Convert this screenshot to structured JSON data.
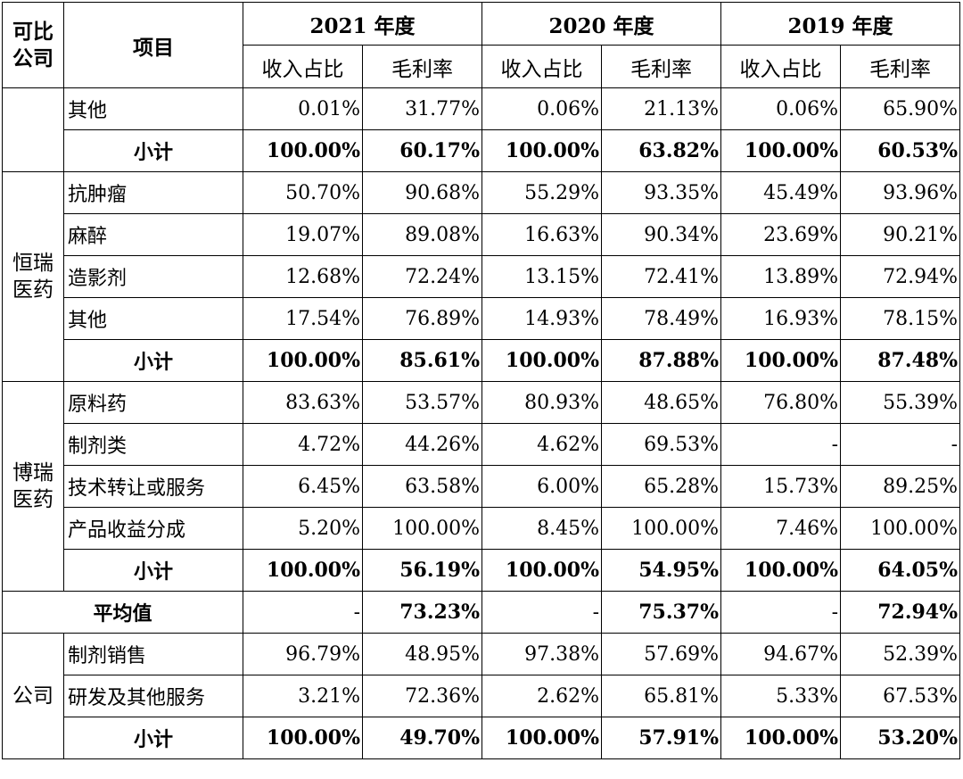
{
  "header": {
    "company_col": "可比公司",
    "item_col": "项目",
    "years": [
      "2021 年度",
      "2020 年度",
      "2019 年度"
    ],
    "sub_cols": [
      "收入占比",
      "毛利率"
    ]
  },
  "groups": [
    {
      "company": "",
      "rows": [
        {
          "item": "其他",
          "values": [
            "0.01%",
            "31.77%",
            "0.06%",
            "21.13%",
            "0.06%",
            "65.90%"
          ]
        },
        {
          "item": "小计",
          "subtotal": true,
          "values": [
            "100.00%",
            "60.17%",
            "100.00%",
            "63.82%",
            "100.00%",
            "60.53%"
          ]
        }
      ]
    },
    {
      "company": "恒瑞医药",
      "rows": [
        {
          "item": "抗肿瘤",
          "values": [
            "50.70%",
            "90.68%",
            "55.29%",
            "93.35%",
            "45.49%",
            "93.96%"
          ]
        },
        {
          "item": "麻醉",
          "values": [
            "19.07%",
            "89.08%",
            "16.63%",
            "90.34%",
            "23.69%",
            "90.21%"
          ]
        },
        {
          "item": "造影剂",
          "values": [
            "12.68%",
            "72.24%",
            "13.15%",
            "72.41%",
            "13.89%",
            "72.94%"
          ]
        },
        {
          "item": "其他",
          "values": [
            "17.54%",
            "76.89%",
            "14.93%",
            "78.49%",
            "16.93%",
            "78.15%"
          ]
        },
        {
          "item": "小计",
          "subtotal": true,
          "values": [
            "100.00%",
            "85.61%",
            "100.00%",
            "87.88%",
            "100.00%",
            "87.48%"
          ]
        }
      ]
    },
    {
      "company": "博瑞医药",
      "rows": [
        {
          "item": "原料药",
          "values": [
            "83.63%",
            "53.57%",
            "80.93%",
            "48.65%",
            "76.80%",
            "55.39%"
          ]
        },
        {
          "item": "制剂类",
          "values": [
            "4.72%",
            "44.26%",
            "4.62%",
            "69.53%",
            "-",
            "-"
          ]
        },
        {
          "item": "技术转让或服务",
          "values": [
            "6.45%",
            "63.58%",
            "6.00%",
            "65.28%",
            "15.73%",
            "89.25%"
          ]
        },
        {
          "item": "产品收益分成",
          "values": [
            "5.20%",
            "100.00%",
            "8.45%",
            "100.00%",
            "7.46%",
            "100.00%"
          ]
        },
        {
          "item": "小计",
          "subtotal": true,
          "values": [
            "100.00%",
            "56.19%",
            "100.00%",
            "54.95%",
            "100.00%",
            "64.05%"
          ]
        }
      ]
    }
  ],
  "average": {
    "label": "平均值",
    "values": [
      "-",
      "73.23%",
      "-",
      "75.37%",
      "-",
      "72.94%"
    ]
  },
  "company_group": {
    "company": "公司",
    "rows": [
      {
        "item": "制剂销售",
        "values": [
          "96.79%",
          "48.95%",
          "97.38%",
          "57.69%",
          "94.67%",
          "52.39%"
        ]
      },
      {
        "item": "研发及其他服务",
        "values": [
          "3.21%",
          "72.36%",
          "2.62%",
          "65.81%",
          "5.33%",
          "67.53%"
        ]
      },
      {
        "item": "小计",
        "subtotal": true,
        "values": [
          "100.00%",
          "49.70%",
          "100.00%",
          "57.91%",
          "100.00%",
          "53.20%"
        ]
      }
    ]
  }
}
